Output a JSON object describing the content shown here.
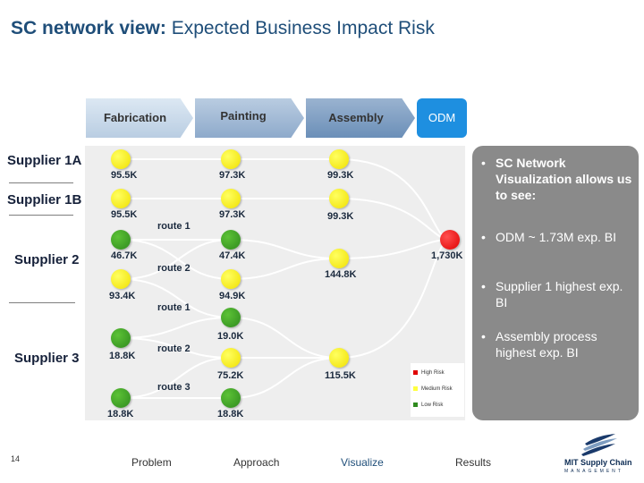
{
  "header": {
    "title_bold": "SC network view:",
    "title_rest": " Expected Business Impact Risk"
  },
  "process": [
    "Fabrication",
    "Painting",
    "Assembly",
    "ODM"
  ],
  "suppliers": [
    "Supplier 1A",
    "Supplier 1B",
    "Supplier 2",
    "Supplier 3"
  ],
  "nodes": {
    "fab": [
      "95.5K",
      "95.5K",
      "46.7K",
      "93.4K",
      "18.8K",
      "18.8K"
    ],
    "paint": [
      "97.3K",
      "97.3K",
      "47.4K",
      "94.9K",
      "19.0K",
      "75.2K",
      "18.8K"
    ],
    "asm": [
      "99.3K",
      "99.3K",
      "144.8K",
      "115.5K"
    ],
    "odm": "1,730K"
  },
  "routes": [
    "route 1",
    "route 2",
    "route 1",
    "route 2",
    "route 3"
  ],
  "legend": [
    "High Risk",
    "Medium Risk",
    "Low Risk"
  ],
  "colors": {
    "high": "#e00000",
    "medium": "#ffff40",
    "low": "#2f8a1e"
  },
  "panel": {
    "bullets": [
      "SC Network Visualization allows us to see:",
      "ODM ~ 1.73M exp. BI",
      "Supplier 1 highest exp. BI",
      "Assembly process highest exp. BI"
    ]
  },
  "footer": {
    "page": "14",
    "nav": [
      "Problem",
      "Approach",
      "Visualize",
      "Results"
    ],
    "logo_text": "MIT Supply Chain",
    "logo_sub": "MANAGEMENT"
  }
}
